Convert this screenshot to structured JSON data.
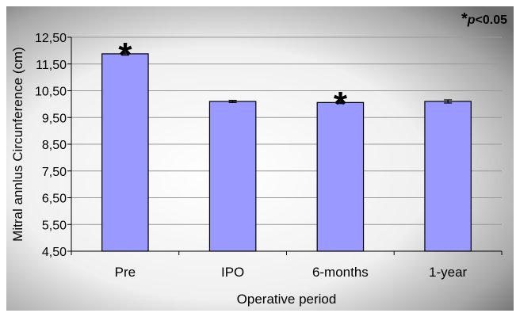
{
  "chart_data": {
    "type": "bar",
    "categories": [
      "Pre",
      "IPO",
      "6-months",
      "1-year"
    ],
    "values": [
      11.88,
      10.1,
      10.06,
      10.1
    ],
    "errors": [
      0.05,
      0.04,
      0.04,
      0.06
    ],
    "significant": [
      true,
      false,
      true,
      false
    ],
    "xlabel": "Operative period",
    "ylabel": "Mitral annlus Circunference (cm)",
    "ylim": [
      4.5,
      12.5
    ],
    "yticks": [
      4.5,
      5.5,
      6.5,
      7.5,
      8.5,
      9.5,
      10.5,
      11.5,
      12.5
    ],
    "ytick_labels": [
      "4,50",
      "5,50",
      "6,50",
      "7,50",
      "8,50",
      "9,50",
      "10,50",
      "11,50",
      "12,50"
    ],
    "grid": true,
    "colors": {
      "bar": "#9999ff",
      "bar_edge": "#000000",
      "grid": "#9a9a9a"
    },
    "significance_marker": "*",
    "annotation": {
      "marker": "*",
      "italic": "p",
      "text": "<0.05"
    }
  }
}
